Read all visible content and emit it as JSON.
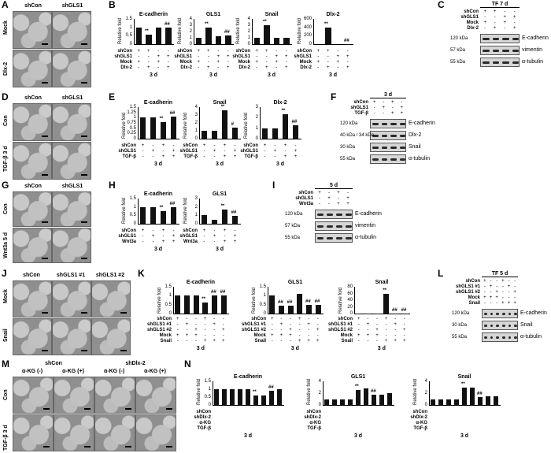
{
  "panels": {
    "A": {
      "label": "A",
      "cols": [
        "shCon",
        "shGLS1"
      ],
      "rows": [
        "Mock",
        "Dlx-2"
      ]
    },
    "B": {
      "label": "B",
      "charts": [
        {
          "title": "E-cadherin",
          "values": [
            1.0,
            0.55,
            1.0,
            1.0
          ],
          "ymax": 1.5,
          "ticks": [
            "1.5",
            "1",
            "0.5",
            "0"
          ],
          "marks": [
            "",
            "**",
            "",
            "##"
          ]
        },
        {
          "title": "GLS1",
          "values": [
            1.0,
            2.6,
            1.2,
            1.4
          ],
          "ymax": 4,
          "ticks": [
            "4",
            "3",
            "2",
            "1",
            "0"
          ],
          "marks": [
            "",
            "**",
            "",
            "##"
          ]
        },
        {
          "title": "Snail",
          "values": [
            1.0,
            3.0,
            1.0,
            1.0
          ],
          "ymax": 4,
          "ticks": [
            "4",
            "3",
            "2",
            "1",
            "0"
          ],
          "marks": [
            "",
            "**",
            "",
            ""
          ]
        },
        {
          "title": "Dlx-2",
          "values": [
            1.0,
            400,
            1.0,
            3
          ],
          "ymax": 600,
          "ticks": [
            "600",
            "400",
            "200",
            "0"
          ],
          "marks": [
            "",
            "**",
            "",
            "##"
          ]
        }
      ],
      "rows": [
        "shCon",
        "shGLS1",
        "Mock",
        "Dlx-2"
      ],
      "matrix": [
        [
          "+",
          "+",
          "-",
          "-"
        ],
        [
          "-",
          "-",
          "+",
          "+"
        ],
        [
          "+",
          "-",
          "+",
          "-"
        ],
        [
          "-",
          "+",
          "-",
          "+"
        ]
      ],
      "time": "3 d"
    },
    "C": {
      "label": "C",
      "title": "TF 7 d",
      "rows": [
        "shCon",
        "shGLS1",
        "Mock",
        "Dlx-2"
      ],
      "matrix": [
        [
          "+",
          "+",
          "-",
          "-"
        ],
        [
          "-",
          "-",
          "+",
          "+"
        ],
        [
          "+",
          "-",
          "+",
          "-"
        ],
        [
          "-",
          "+",
          "-",
          "+"
        ]
      ],
      "blots": [
        {
          "size": "120 kDa",
          "name": "E-cadherin"
        },
        {
          "size": "57 kDa",
          "name": "vimentin"
        },
        {
          "size": "55 kDa",
          "name": "α-tubulin"
        }
      ]
    },
    "D": {
      "label": "D",
      "cols": [
        "shCon",
        "shGLS1"
      ],
      "rows": [
        "Con",
        "TGF-β 3 d"
      ]
    },
    "E": {
      "label": "E",
      "charts": [
        {
          "title": "E-cadherin",
          "values": [
            1.0,
            1.0,
            0.8,
            1.05
          ],
          "ymax": 1.5,
          "ticks": [
            "1.5",
            "1.25",
            "1",
            "0.75",
            "0.5",
            "0.25",
            "0"
          ],
          "marks": [
            "",
            "",
            "**",
            "##"
          ]
        },
        {
          "title": "Snail",
          "values": [
            1.0,
            1.0,
            3.6,
            1.4
          ],
          "ymax": 4,
          "ticks": [
            "4",
            "3",
            "2",
            "1",
            "0"
          ],
          "marks": [
            "",
            "",
            "**",
            "#"
          ]
        },
        {
          "title": "Dlx-2",
          "values": [
            1.0,
            1.0,
            2.3,
            1.3
          ],
          "ymax": 3,
          "ticks": [
            "3",
            "2",
            "1",
            "0"
          ],
          "marks": [
            "",
            "",
            "**",
            "##"
          ]
        }
      ],
      "rows": [
        "shCon",
        "shGLS1",
        "TGF-β"
      ],
      "matrix": [
        [
          "+",
          "-",
          "+",
          "-"
        ],
        [
          "-",
          "+",
          "-",
          "+"
        ],
        [
          "-",
          "-",
          "+",
          "+"
        ]
      ],
      "time": "3 d"
    },
    "F": {
      "label": "F",
      "title": "3 d",
      "rows": [
        "shCon",
        "shGLS1",
        "TGF-β"
      ],
      "matrix": [
        [
          "+",
          "-",
          "+",
          "-"
        ],
        [
          "-",
          "+",
          "-",
          "+"
        ],
        [
          "-",
          "-",
          "+",
          "+"
        ]
      ],
      "blots": [
        {
          "size": "120 kDa",
          "name": "E-cadherin"
        },
        {
          "size": "40 kDa / 34 kDa",
          "name": "Dlx-2"
        },
        {
          "size": "30 kDa",
          "name": "Snail"
        },
        {
          "size": "55 kDa",
          "name": "α-tubulin"
        }
      ]
    },
    "G": {
      "label": "G",
      "cols": [
        "shCon",
        "shGLS1"
      ],
      "rows": [
        "Con",
        "Wnt3a 5 d"
      ]
    },
    "H": {
      "label": "H",
      "charts": [
        {
          "title": "E-cadherin",
          "values": [
            1.0,
            1.0,
            0.75,
            1.0
          ],
          "ymax": 1.5,
          "ticks": [
            "1.5",
            "1",
            "0.5",
            "0"
          ],
          "marks": [
            "",
            "",
            "**",
            "##"
          ]
        },
        {
          "title": "GLS1",
          "values": [
            1.0,
            0.5,
            1.7,
            0.9
          ],
          "ymax": 3,
          "ticks": [
            "3",
            "2",
            "1",
            "0"
          ],
          "marks": [
            "",
            "",
            "**",
            "##"
          ]
        }
      ],
      "rows": [
        "shCon",
        "shGLS1",
        "Wnt3a"
      ],
      "matrix": [
        [
          "+",
          "-",
          "+",
          "-"
        ],
        [
          "-",
          "+",
          "-",
          "+"
        ],
        [
          "-",
          "-",
          "+",
          "+"
        ]
      ],
      "time": "3 d"
    },
    "I": {
      "label": "I",
      "title": "5 d",
      "rows": [
        "shCon",
        "shGLS1",
        "Wnt3a"
      ],
      "matrix": [
        [
          "+",
          "-",
          "+",
          "-"
        ],
        [
          "-",
          "+",
          "-",
          "+"
        ],
        [
          "-",
          "-",
          "+",
          "+"
        ]
      ],
      "blots": [
        {
          "size": "120 kDa",
          "name": "E-cadherin"
        },
        {
          "size": "57 kDa",
          "name": "vimentin"
        },
        {
          "size": "55 kDa",
          "name": "α-tubulin"
        }
      ]
    },
    "J": {
      "label": "J",
      "cols": [
        "shCon",
        "shGLS1 #1",
        "shGLS1 #2"
      ],
      "rows": [
        "Mock",
        "Snail"
      ]
    },
    "K": {
      "label": "K",
      "charts": [
        {
          "title": "E-cadherin",
          "values": [
            1.0,
            1.0,
            1.0,
            0.6,
            1.0,
            1.0
          ],
          "ymax": 1.5,
          "ticks": [
            "1.5",
            "1",
            "0.5",
            "0"
          ],
          "marks": [
            "",
            "",
            "",
            "**",
            "##",
            "##"
          ]
        },
        {
          "title": "GLS1",
          "values": [
            1.0,
            0.45,
            0.45,
            1.1,
            0.5,
            0.5
          ],
          "ymax": 1.5,
          "ticks": [
            "1.5",
            "1",
            "0.5",
            "0"
          ],
          "marks": [
            "",
            "##",
            "##",
            "",
            "##",
            "##"
          ]
        },
        {
          "title": "Snail",
          "values": [
            1.0,
            1.0,
            1.0,
            60,
            1.0,
            1.0
          ],
          "ymax": 80,
          "ticks": [
            "80",
            "60",
            "40",
            "20",
            "0"
          ],
          "marks": [
            "",
            "",
            "",
            "**",
            "##",
            "##"
          ]
        }
      ],
      "rows": [
        "shCon",
        "shGLS1 #1",
        "shGLS1 #2",
        "Mock",
        "Snail"
      ],
      "matrix": [
        [
          "+",
          "-",
          "-",
          "+",
          "-",
          "-"
        ],
        [
          "-",
          "+",
          "-",
          "-",
          "+",
          "-"
        ],
        [
          "-",
          "-",
          "+",
          "-",
          "-",
          "+"
        ],
        [
          "+",
          "+",
          "+",
          "-",
          "-",
          "-"
        ],
        [
          "-",
          "-",
          "-",
          "+",
          "+",
          "+"
        ]
      ],
      "time": "3 d"
    },
    "L": {
      "label": "L",
      "title": "TF 5 d",
      "rows": [
        "shCon",
        "shGLS1 #1",
        "shGLS1 #2",
        "Mock",
        "Snail"
      ],
      "matrix": [
        [
          "+",
          "-",
          "-",
          "+",
          "-",
          "-"
        ],
        [
          "-",
          "+",
          "-",
          "-",
          "+",
          "-"
        ],
        [
          "-",
          "-",
          "+",
          "-",
          "-",
          "+"
        ],
        [
          "+",
          "+",
          "+",
          "-",
          "-",
          "-"
        ],
        [
          "-",
          "-",
          "-",
          "+",
          "+",
          "+"
        ]
      ],
      "blots": [
        {
          "size": "120 kDa",
          "name": "E-cadherin"
        },
        {
          "size": "30 kDa",
          "name": "Snail"
        },
        {
          "size": "55 kDa",
          "name": "α-tubulin"
        }
      ]
    },
    "M": {
      "label": "M",
      "groups": [
        "shCon",
        "shDlx-2"
      ],
      "cols": [
        "α-KG (-)",
        "α-KG (+)",
        "α-KG (-)",
        "α-KG (+)"
      ],
      "rows": [
        "Con",
        "TGF-β 3 d"
      ]
    },
    "N": {
      "label": "N",
      "charts": [
        {
          "title": "E-cadherin",
          "values": [
            1.0,
            1.0,
            1.0,
            1.0,
            1.0,
            0.6,
            0.6,
            0.9,
            1.0
          ],
          "ymax": 1.5,
          "ticks": [
            "1.5",
            "1",
            "0.5",
            "0"
          ],
          "marks": [
            "",
            "",
            "",
            "",
            "",
            "**",
            "",
            "##",
            ""
          ]
        },
        {
          "title": "GLS1",
          "values": [
            1.0,
            1.0,
            1.0,
            1.0,
            2.6,
            2.8,
            1.8,
            1.8,
            2.0
          ],
          "ymax": 4,
          "ticks": [
            "4",
            "2",
            "0"
          ],
          "marks": [
            "",
            "",
            "",
            "",
            "**",
            "",
            "##",
            "",
            ""
          ]
        },
        {
          "title": "Snail",
          "values": [
            1.0,
            1.0,
            1.0,
            1.0,
            3.0,
            3.0,
            1.4,
            1.5,
            1.5
          ],
          "ymax": 4,
          "ticks": [
            "4",
            "2",
            "0"
          ],
          "marks": [
            "",
            "",
            "",
            "",
            "**",
            "",
            "##",
            "",
            ""
          ]
        }
      ],
      "rows": [
        "shCon",
        "shDlx-2",
        "α-KG",
        "TGF-β"
      ],
      "time": "3 d"
    }
  },
  "common": {
    "ylabel": "Relative fold"
  }
}
